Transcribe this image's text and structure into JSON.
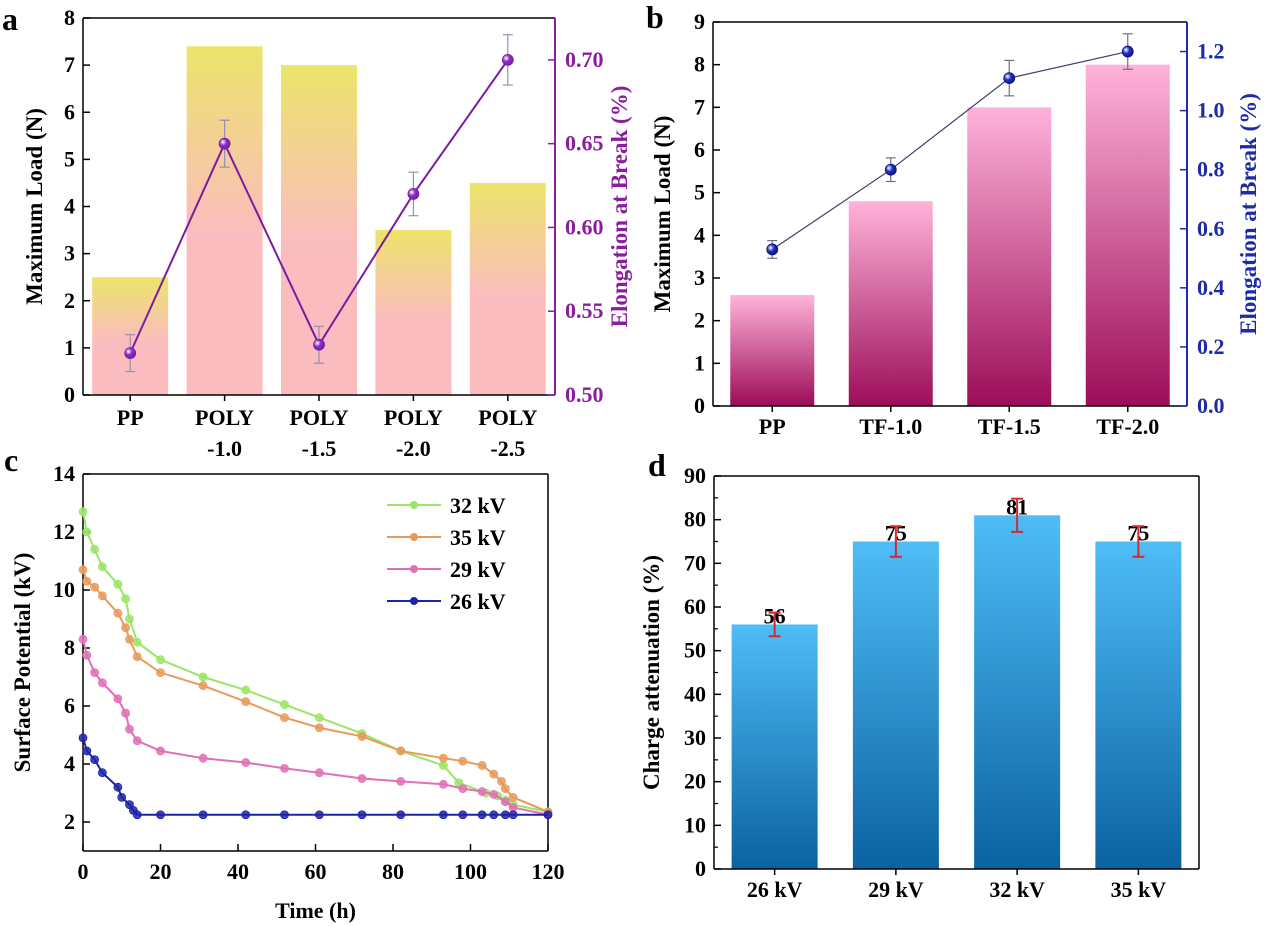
{
  "colors": {
    "a_bar_top": "#ece46a",
    "a_bar_bottom": "#fbbcc0",
    "a_line": "#7b1c9e",
    "a_marker": "#8a2dc8",
    "a_right_axis": "#8b1e9f",
    "b_bar_top": "#ffb3da",
    "b_bar_bottom": "#9c0d58",
    "b_line": "#3d3d6e",
    "b_marker": "#1f2fc9",
    "b_right_axis": "#1c2ba8",
    "c_32kV": "#9be564",
    "c_35kV": "#e99a5b",
    "c_29kV": "#e070b6",
    "c_26kV": "#1d23a8",
    "d_bar_top": "#4fbdf7",
    "d_bar_bottom": "#0b62a0",
    "d_error": "#d42a2a"
  },
  "chart_data": [
    {
      "panel": "a",
      "panel_label": "a",
      "type": "bar",
      "categories": [
        [
          "PP"
        ],
        [
          "POLY",
          "-1.0"
        ],
        [
          "POLY",
          "-1.5"
        ],
        [
          "POLY",
          "-2.0"
        ],
        [
          "POLY",
          "-2.5"
        ]
      ],
      "ylabel": "Maximum Load (N)",
      "ylim": [
        0,
        8
      ],
      "yticks": [
        "0",
        "1",
        "2",
        "3",
        "4",
        "5",
        "6",
        "7",
        "8"
      ],
      "series": [
        {
          "name": "Maximum Load",
          "values": [
            2.5,
            7.4,
            7.0,
            3.5,
            4.5
          ]
        }
      ],
      "y2label": "Elongation at Break (%)",
      "y2lim": [
        0.5,
        0.725
      ],
      "y2ticks": [
        "0.50",
        "0.55",
        "0.60",
        "0.65",
        "0.70"
      ],
      "line": {
        "name": "Elongation at Break",
        "values": [
          0.525,
          0.65,
          0.53,
          0.62,
          0.7
        ],
        "errors": [
          0.011,
          0.014,
          0.011,
          0.013,
          0.015
        ]
      }
    },
    {
      "panel": "b",
      "panel_label": "b",
      "type": "bar",
      "categories": [
        [
          "PP"
        ],
        [
          "TF-1.0"
        ],
        [
          "TF-1.5"
        ],
        [
          "TF-2.0"
        ]
      ],
      "ylabel": "Maximum Load (N)",
      "ylim": [
        0,
        9
      ],
      "yticks": [
        "0",
        "1",
        "2",
        "3",
        "4",
        "5",
        "6",
        "7",
        "8",
        "9"
      ],
      "series": [
        {
          "name": "Maximum Load",
          "values": [
            2.6,
            4.8,
            7.0,
            8.0
          ]
        }
      ],
      "y2label": "Elongation at Break (%)",
      "y2lim": [
        0,
        1.3
      ],
      "y2ticks": [
        "0.0",
        "0.2",
        "0.4",
        "0.6",
        "0.8",
        "1.0",
        "1.2"
      ],
      "line": {
        "name": "Elongation at Break",
        "values": [
          0.53,
          0.8,
          1.11,
          1.2
        ],
        "errors": [
          0.03,
          0.04,
          0.06,
          0.06
        ]
      }
    },
    {
      "panel": "c",
      "panel_label": "c",
      "type": "line",
      "xlabel": "Time (h)",
      "ylabel": "Surface Potential (kV)",
      "xlim": [
        0,
        120
      ],
      "ylim": [
        1,
        14
      ],
      "xticks": [
        "0",
        "20",
        "40",
        "60",
        "80",
        "100",
        "120"
      ],
      "yticks": [
        "2",
        "4",
        "6",
        "8",
        "10",
        "12",
        "14"
      ],
      "series": [
        {
          "name": "32 kV",
          "x": [
            0,
            1,
            3,
            5,
            9,
            11,
            12,
            14,
            20,
            31,
            42,
            52,
            61,
            72,
            82,
            93,
            97,
            104,
            107,
            109,
            111,
            120
          ],
          "y": [
            12.7,
            12.0,
            11.4,
            10.8,
            10.2,
            9.7,
            9.0,
            8.2,
            7.6,
            7.0,
            6.55,
            6.05,
            5.6,
            5.05,
            4.45,
            3.95,
            3.35,
            3.0,
            2.9,
            2.75,
            2.6,
            2.35
          ]
        },
        {
          "name": "35 kV",
          "x": [
            0,
            1,
            3,
            5,
            9,
            11,
            12,
            14,
            20,
            31,
            42,
            52,
            61,
            72,
            82,
            93,
            98,
            103,
            106,
            108,
            109,
            111,
            120
          ],
          "y": [
            10.7,
            10.3,
            10.1,
            9.8,
            9.2,
            8.7,
            8.3,
            7.7,
            7.15,
            6.7,
            6.15,
            5.6,
            5.25,
            4.95,
            4.45,
            4.2,
            4.1,
            3.95,
            3.65,
            3.4,
            3.15,
            2.85,
            2.35
          ]
        },
        {
          "name": "29 kV",
          "x": [
            0,
            1,
            3,
            5,
            9,
            11,
            12,
            14,
            20,
            31,
            42,
            52,
            61,
            72,
            82,
            93,
            98,
            103,
            106,
            109,
            111,
            120
          ],
          "y": [
            8.3,
            7.75,
            7.15,
            6.8,
            6.25,
            5.75,
            5.2,
            4.8,
            4.45,
            4.2,
            4.05,
            3.85,
            3.7,
            3.5,
            3.4,
            3.3,
            3.15,
            3.05,
            2.95,
            2.7,
            2.5,
            2.25
          ]
        },
        {
          "name": "26 kV",
          "x": [
            0,
            1,
            3,
            5,
            9,
            10,
            12,
            13,
            14,
            20,
            31,
            42,
            52,
            61,
            72,
            82,
            93,
            98,
            103,
            106,
            109,
            111,
            120
          ],
          "y": [
            4.9,
            4.45,
            4.15,
            3.7,
            3.2,
            2.85,
            2.6,
            2.4,
            2.25,
            2.25,
            2.25,
            2.25,
            2.25,
            2.25,
            2.25,
            2.25,
            2.25,
            2.25,
            2.25,
            2.25,
            2.25,
            2.25,
            2.25
          ]
        }
      ],
      "legend": "top-right"
    },
    {
      "panel": "d",
      "panel_label": "d",
      "type": "bar",
      "categories": [
        "26 kV",
        "29 kV",
        "32 kV",
        "35 kV"
      ],
      "values": [
        56,
        75,
        81,
        75
      ],
      "data_labels": [
        "56",
        "75",
        "81",
        "75"
      ],
      "errors": [
        2.7,
        3.5,
        3.8,
        3.5
      ],
      "ylabel": "Charge attenuation (%)",
      "ylim": [
        0,
        90
      ],
      "yticks": [
        "0",
        "10",
        "20",
        "30",
        "40",
        "50",
        "60",
        "70",
        "80",
        "90"
      ]
    }
  ]
}
